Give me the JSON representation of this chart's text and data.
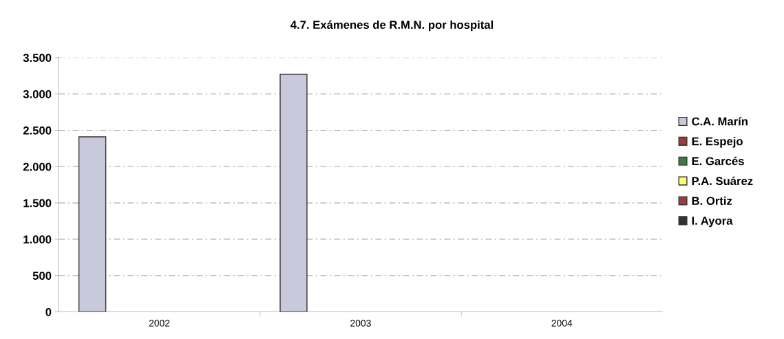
{
  "chart_data": {
    "type": "bar",
    "title": "4.7. Exámenes de R.M.N. por hospital",
    "categories": [
      "2002",
      "2003",
      "2004"
    ],
    "series": [
      {
        "name": "C.A. Marín",
        "color": "#c9c9dc",
        "values": [
          2410,
          3270,
          null
        ]
      },
      {
        "name": "E. Espejo",
        "color": "#9e3a3a",
        "values": [
          null,
          null,
          null
        ]
      },
      {
        "name": "E. Garcés",
        "color": "#3f7a3f",
        "values": [
          null,
          null,
          null
        ]
      },
      {
        "name": "P.A. Suárez",
        "color": "#ffff66",
        "values": [
          null,
          null,
          null
        ]
      },
      {
        "name": "B. Ortiz",
        "color": "#9e3a3a",
        "values": [
          null,
          null,
          null
        ]
      },
      {
        "name": "I. Ayora",
        "color": "#333333",
        "values": [
          null,
          null,
          null
        ]
      }
    ],
    "ylim": [
      0,
      3500
    ],
    "yticks": [
      {
        "value": 0,
        "label": "0"
      },
      {
        "value": 500,
        "label": "500"
      },
      {
        "value": 1000,
        "label": "1.000"
      },
      {
        "value": 1500,
        "label": "1.500"
      },
      {
        "value": 2000,
        "label": "2.000"
      },
      {
        "value": 2500,
        "label": "2.500"
      },
      {
        "value": 3000,
        "label": "3.000"
      },
      {
        "value": 3500,
        "label": "3.500"
      }
    ],
    "grid": "y",
    "legend": "right"
  }
}
